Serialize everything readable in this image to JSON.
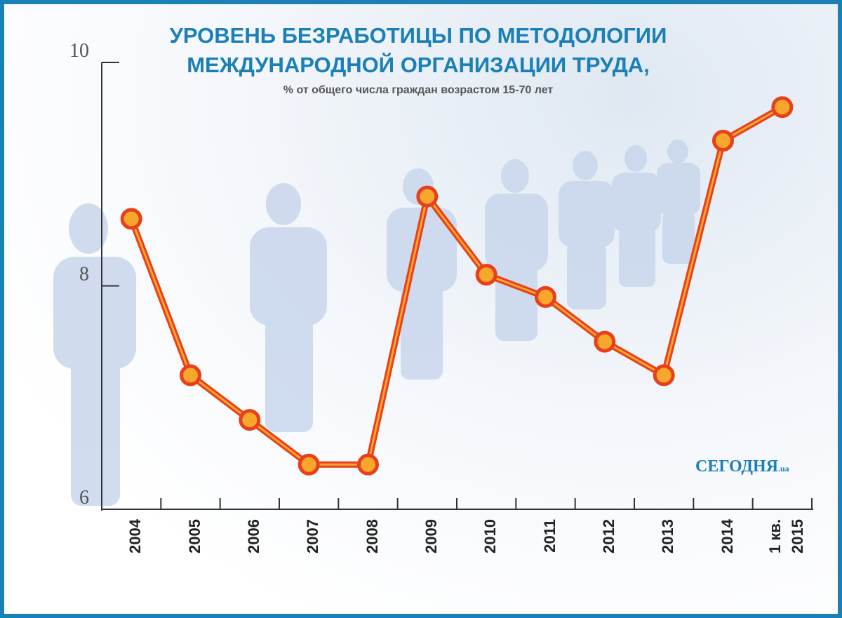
{
  "chart_data": {
    "type": "line",
    "title": "УРОВЕНЬ БЕЗРАБОТИЦЫ ПО МЕТОДОЛОГИИ МЕЖДУНАРОДНОЙ ОРГАНИЗАЦИИ ТРУДА,",
    "subtitle": "% от общего числа граждан возрастом 15-70 лет",
    "categories": [
      "2004",
      "2005",
      "2006",
      "2007",
      "2008",
      "2009",
      "2010",
      "2011",
      "2012",
      "2013",
      "2014",
      "1 кв. 2015"
    ],
    "values": [
      8.6,
      7.2,
      6.8,
      6.4,
      6.4,
      8.8,
      8.1,
      7.9,
      7.5,
      7.2,
      9.3,
      9.6
    ],
    "color": "#e8401c",
    "marker_fill": "#f8a62c",
    "ylim": [
      6,
      10
    ],
    "yticks": [
      6,
      8,
      10
    ],
    "logo": "СЕГОДНЯ",
    "logo_suffix": ".ua"
  }
}
